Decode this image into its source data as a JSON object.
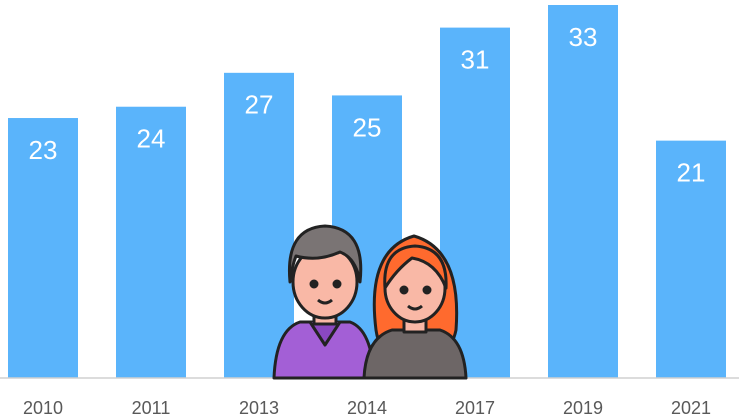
{
  "chart_data": {
    "type": "bar",
    "categories": [
      "2010",
      "2011",
      "2013",
      "2014",
      "2017",
      "2019",
      "2021"
    ],
    "values": [
      23,
      24,
      27,
      25,
      31,
      33,
      21
    ],
    "color": "#5ab4fb"
  }
}
